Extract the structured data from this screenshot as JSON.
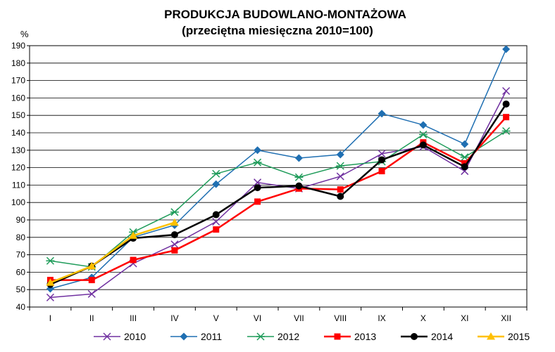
{
  "chart_data": {
    "type": "line",
    "title": "PRODUKCJA BUDOWLANO-MONTAŻOWA",
    "subtitle": "(przeciętna miesięczna 2010=100)",
    "ylabel": "%",
    "xlabel": "",
    "categories": [
      "I",
      "II",
      "III",
      "IV",
      "V",
      "VI",
      "VII",
      "VIII",
      "IX",
      "X",
      "XI",
      "XII"
    ],
    "ylim": [
      40,
      190
    ],
    "yticks": [
      40,
      50,
      60,
      70,
      80,
      90,
      100,
      110,
      120,
      130,
      140,
      150,
      160,
      170,
      180,
      190
    ],
    "grid": true,
    "legend_position": "bottom",
    "series": [
      {
        "name": "2010",
        "color": "#7030a0",
        "marker": "x",
        "width": 1.5,
        "values": [
          45.5,
          47.5,
          65,
          76,
          89,
          111.5,
          108,
          115,
          128,
          132,
          118,
          164
        ]
      },
      {
        "name": "2011",
        "color": "#1f6fb2",
        "marker": "diamond",
        "width": 1.5,
        "values": [
          50.5,
          57,
          80,
          87,
          110.5,
          130,
          125.5,
          127.5,
          151,
          144.5,
          133.5,
          188
        ]
      },
      {
        "name": "2012",
        "color": "#1f9c5a",
        "marker": "star",
        "width": 1.5,
        "values": [
          66.5,
          63,
          83,
          94.5,
          116.5,
          123,
          114.5,
          121,
          123.5,
          139,
          126,
          141
        ]
      },
      {
        "name": "2013",
        "color": "#ff0000",
        "marker": "square",
        "width": 2.5,
        "values": [
          55.5,
          55.5,
          67,
          72.5,
          84.5,
          100.5,
          108,
          107.5,
          118,
          134.5,
          122.5,
          149
        ]
      },
      {
        "name": "2014",
        "color": "#000000",
        "marker": "circle",
        "width": 2.5,
        "values": [
          53,
          63.5,
          79.5,
          81.5,
          93,
          108.5,
          109.5,
          103.5,
          124.5,
          133,
          120.5,
          156.5
        ]
      },
      {
        "name": "2015",
        "color": "#ffc000",
        "marker": "triangle",
        "width": 2.5,
        "values": [
          54,
          63.5,
          81,
          88.5,
          null,
          null,
          null,
          null,
          null,
          null,
          null,
          null
        ]
      }
    ]
  }
}
